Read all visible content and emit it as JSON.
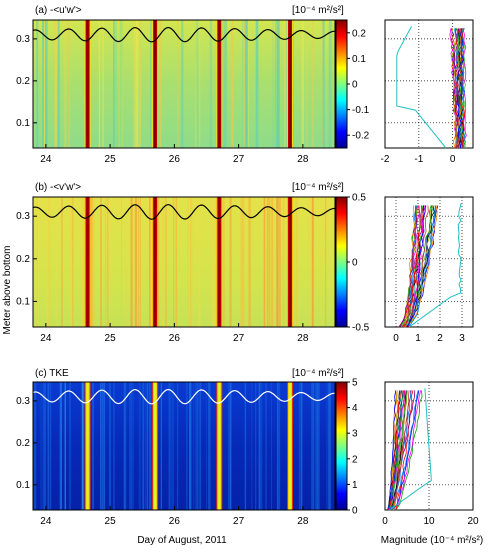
{
  "figure": {
    "xlabel": "Day of August, 2011",
    "ylabel": "Meter above bottom",
    "profile_xlabel": "Magnitude (10⁻⁴ m²/s²)"
  },
  "chart_data": [
    {
      "type": "heatmap",
      "panel_label": "(a) -<u'w'>",
      "units": "[10⁻⁴ m²/s²]",
      "x_ticks": [
        24,
        25,
        26,
        27,
        28
      ],
      "y_ticks": [
        "0.1",
        "0.2",
        "0.3"
      ],
      "xlim": [
        23.8,
        28.5
      ],
      "ylim": [
        0.04,
        0.345
      ],
      "colorbar": {
        "range": [
          -0.25,
          0.25
        ],
        "ticks": [
          "0.2",
          "0.1",
          "0",
          "-0.1",
          "-0.2"
        ],
        "colormap": "jet"
      },
      "event_days": [
        24.65,
        25.7,
        26.7,
        27.8
      ],
      "surface_curve_color": "#000000",
      "profile": {
        "xlim": [
          -2,
          0.6
        ],
        "x_ticks": [
          "-2",
          "-1",
          "0"
        ]
      }
    },
    {
      "type": "heatmap",
      "panel_label": "(b) -<v'w'>",
      "units": "[10⁻⁴ m²/s²]",
      "x_ticks": [
        24,
        25,
        26,
        27,
        28
      ],
      "y_ticks": [
        "0.1",
        "0.2",
        "0.3"
      ],
      "xlim": [
        23.8,
        28.5
      ],
      "ylim": [
        0.04,
        0.345
      ],
      "colorbar": {
        "range": [
          -0.5,
          0.5
        ],
        "ticks": [
          "0.5",
          "0",
          "-0.5"
        ],
        "colormap": "jet"
      },
      "event_days": [
        24.65,
        25.7,
        26.7,
        27.8
      ],
      "surface_curve_color": "#000000",
      "profile": {
        "xlim": [
          -0.5,
          3.5
        ],
        "x_ticks": [
          "0",
          "1",
          "2",
          "3"
        ]
      }
    },
    {
      "type": "heatmap",
      "panel_label": "(c) TKE",
      "units": "[10⁻⁴ m²/s²]",
      "x_ticks": [
        24,
        25,
        26,
        27,
        28
      ],
      "y_ticks": [
        "0.1",
        "0.2",
        "0.3"
      ],
      "xlim": [
        23.8,
        28.5
      ],
      "ylim": [
        0.04,
        0.345
      ],
      "colorbar": {
        "range": [
          0,
          5
        ],
        "ticks": [
          "5",
          "4",
          "3",
          "2",
          "1",
          "0"
        ],
        "colormap": "jet"
      },
      "event_days": [
        24.65,
        25.7,
        26.7,
        27.8
      ],
      "surface_curve_color": "#ffffff",
      "profile": {
        "xlim": [
          0,
          20
        ],
        "x_ticks": [
          "0",
          "10",
          "20"
        ]
      }
    }
  ]
}
